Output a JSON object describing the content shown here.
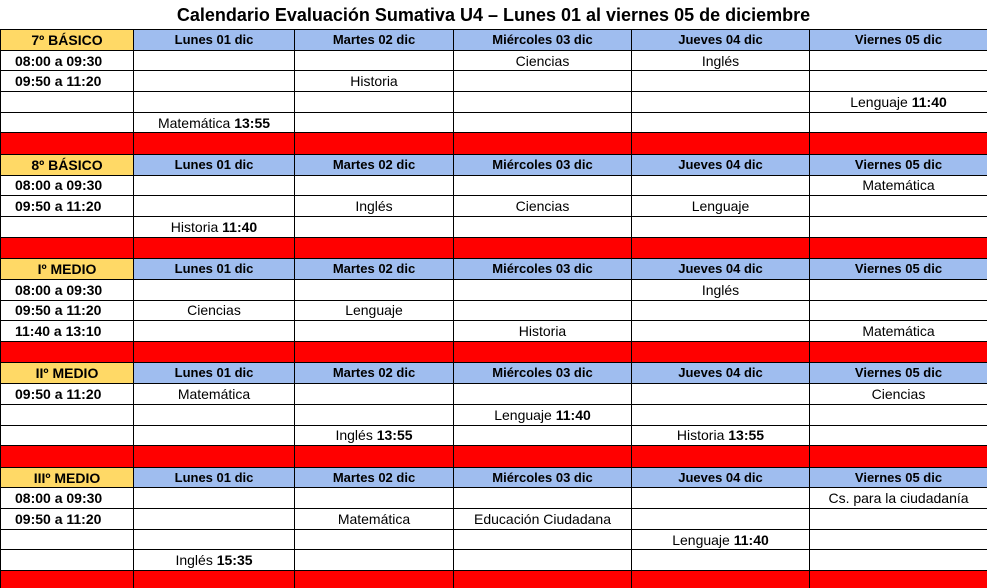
{
  "title": "Calendario Evaluación Sumativa U4 – Lunes 01 al viernes 05 de diciembre",
  "sections": [
    {
      "label": "7º BÁSICO",
      "days": [
        "Lunes 01 dic",
        "Martes 02 dic",
        "Miércoles 03 dic",
        "Jueves 04 dic",
        "Viernes 05 dic"
      ],
      "rows": [
        [
          "08:00 a 09:30",
          null,
          null,
          "Ciencias",
          "Inglés",
          null
        ],
        [
          "09:50 a 11:20",
          null,
          "Historia",
          null,
          null,
          null
        ],
        [
          null,
          null,
          null,
          null,
          null,
          {
            "subject": "Lenguaje",
            "time": "11:40"
          }
        ],
        [
          null,
          {
            "subject": "Matemática",
            "time": "13:55"
          },
          null,
          null,
          null,
          null
        ]
      ]
    },
    {
      "label": "8º BÁSICO",
      "days": [
        "Lunes 01 dic",
        "Martes 02 dic",
        "Miércoles 03 dic",
        "Jueves 04 dic",
        "Viernes 05 dic"
      ],
      "rows": [
        [
          "08:00 a 09:30",
          null,
          null,
          null,
          null,
          "Matemática"
        ],
        [
          "09:50 a 11:20",
          null,
          "Inglés",
          "Ciencias",
          "Lenguaje",
          null
        ],
        [
          null,
          {
            "subject": "Historia",
            "time": "11:40"
          },
          null,
          null,
          null,
          null
        ]
      ]
    },
    {
      "label": "Iº MEDIO",
      "days": [
        "Lunes 01 dic",
        "Martes 02 dic",
        "Miércoles 03 dic",
        "Jueves 04 dic",
        "Viernes 05 dic"
      ],
      "rows": [
        [
          "08:00 a 09:30",
          null,
          null,
          null,
          "Inglés",
          null
        ],
        [
          "09:50 a 11:20",
          "Ciencias",
          "Lenguaje",
          null,
          null,
          null
        ],
        [
          "11:40 a 13:10",
          null,
          null,
          "Historia",
          null,
          "Matemática"
        ]
      ]
    },
    {
      "label": "IIº MEDIO",
      "days": [
        "Lunes 01 dic",
        "Martes 02 dic",
        "Miércoles 03 dic",
        "Jueves 04 dic",
        "Viernes 05 dic"
      ],
      "rows": [
        [
          "09:50 a 11:20",
          "Matemática",
          null,
          null,
          null,
          "Ciencias"
        ],
        [
          null,
          null,
          null,
          {
            "subject": "Lenguaje",
            "time": "11:40"
          },
          null,
          null
        ],
        [
          null,
          null,
          {
            "subject": "Inglés",
            "time": "13:55"
          },
          null,
          {
            "subject": "Historia",
            "time": "13:55"
          },
          null
        ]
      ]
    },
    {
      "label": "IIIº MEDIO",
      "days": [
        "Lunes 01 dic",
        "Martes 02 dic",
        "Miércoles 03 dic",
        "Jueves 04 dic",
        "Viernes 05 dic"
      ],
      "rows": [
        [
          "08:00 a 09:30",
          null,
          null,
          null,
          null,
          "Cs. para la ciudadanía"
        ],
        [
          "09:50 a 11:20",
          null,
          "Matemática",
          "Educación Ciudadana",
          null,
          null
        ],
        [
          null,
          null,
          null,
          null,
          {
            "subject": "Lenguaje",
            "time": "11:40"
          },
          null
        ],
        [
          null,
          {
            "subject": "Inglés",
            "time": "15:35"
          },
          null,
          null,
          null,
          null
        ]
      ]
    }
  ]
}
